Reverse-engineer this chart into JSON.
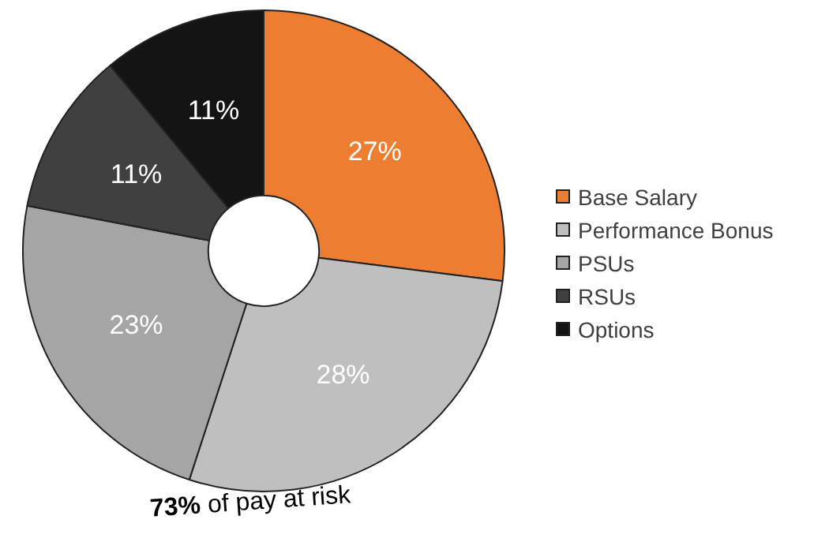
{
  "chart_data": {
    "type": "donut",
    "categories": [
      "Base Salary",
      "Performance Bonus",
      "PSUs",
      "RSUs",
      "Options"
    ],
    "values": [
      27,
      28,
      23,
      11,
      11
    ],
    "colors": [
      "#ed7d31",
      "#bfbfbf",
      "#a5a5a5",
      "#404040",
      "#141414"
    ],
    "value_labels": [
      "27%",
      "28%",
      "23%",
      "11%",
      "11%"
    ],
    "legend": "right",
    "annotations": [
      "73% of pay at risk"
    ]
  }
}
